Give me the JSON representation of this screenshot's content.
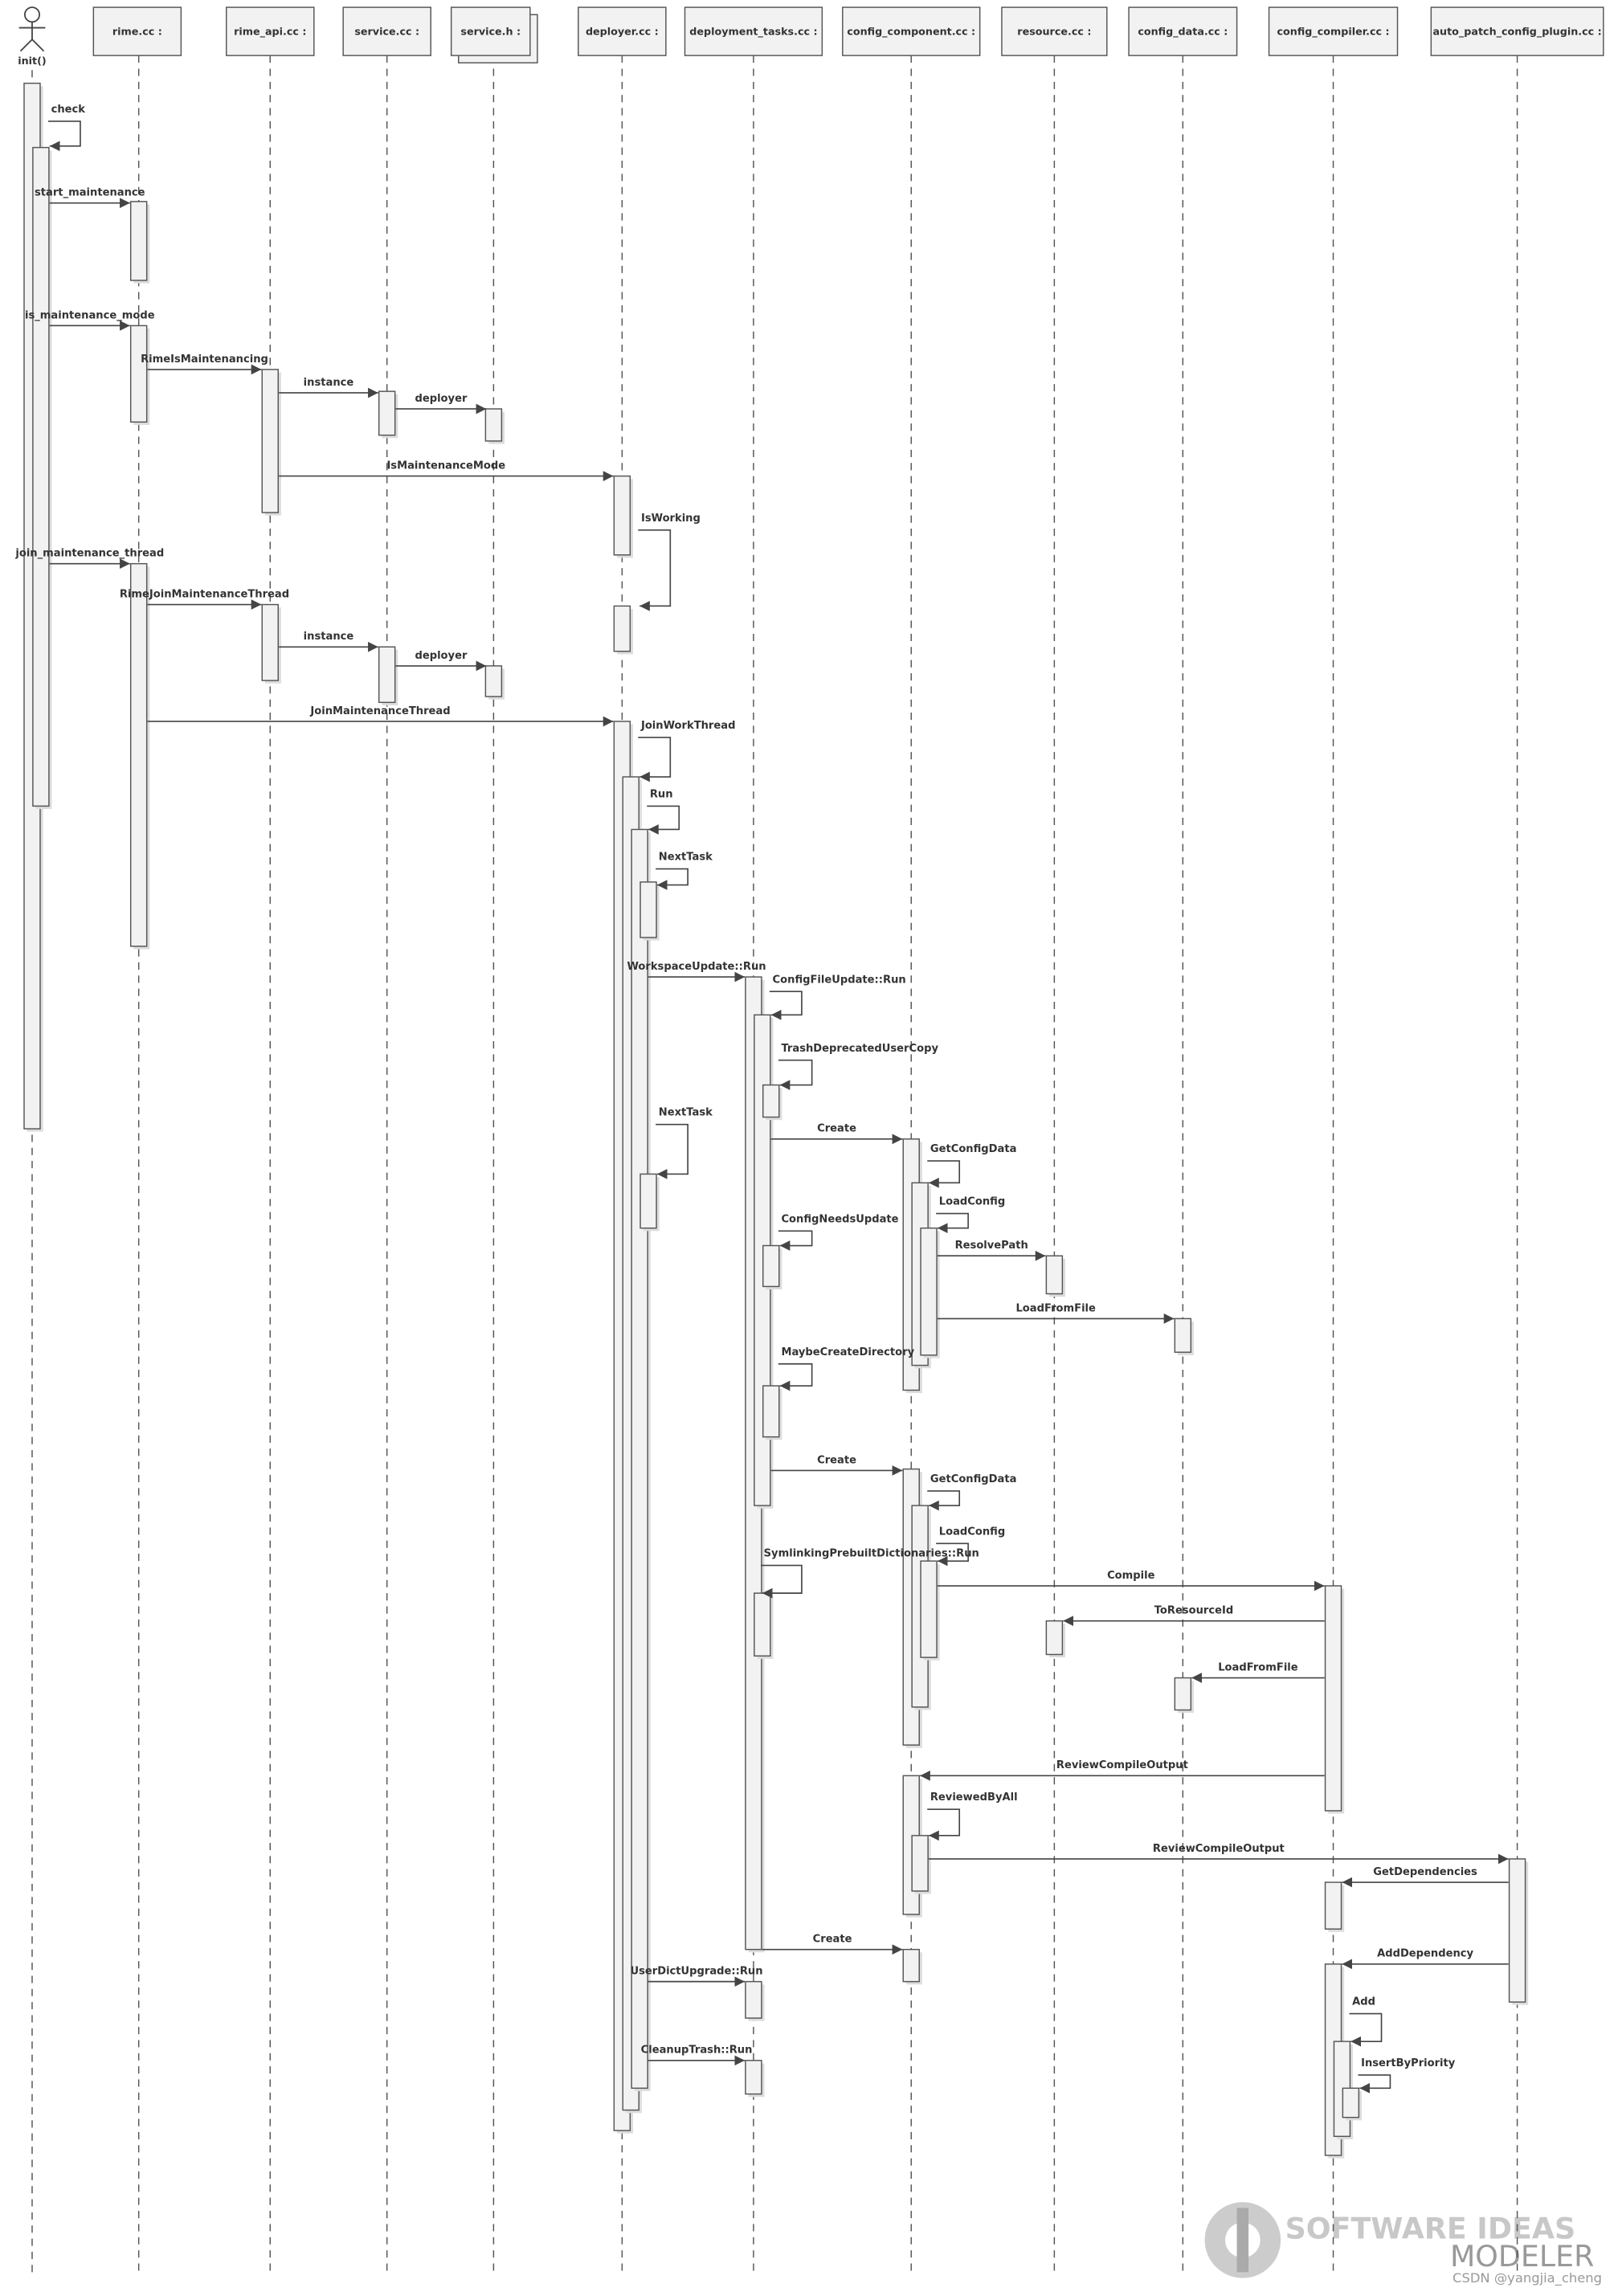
{
  "actor": {
    "label": "init()"
  },
  "lifelines": [
    {
      "label": "rime.cc :"
    },
    {
      "label": "rime_api.cc :"
    },
    {
      "label": "service.cc :"
    },
    {
      "label": "service.h :"
    },
    {
      "label": "deployer.cc :"
    },
    {
      "label": "deployment_tasks.cc :"
    },
    {
      "label": "config_component.cc :"
    },
    {
      "label": "resource.cc :"
    },
    {
      "label": "config_data.cc :"
    },
    {
      "label": "config_compiler.cc :"
    },
    {
      "label": "auto_patch_config_plugin.cc :"
    }
  ],
  "messages": [
    {
      "label": "check"
    },
    {
      "label": "start_maintenance"
    },
    {
      "label": "is_maintenance_mode"
    },
    {
      "label": "RimeIsMaintenancing"
    },
    {
      "label": "instance"
    },
    {
      "label": "deployer"
    },
    {
      "label": "IsMaintenanceMode"
    },
    {
      "label": "IsWorking"
    },
    {
      "label": "join_maintenance_thread"
    },
    {
      "label": "RimeJoinMaintenanceThread"
    },
    {
      "label": "instance"
    },
    {
      "label": "deployer"
    },
    {
      "label": "JoinMaintenanceThread"
    },
    {
      "label": "JoinWorkThread"
    },
    {
      "label": "Run"
    },
    {
      "label": "NextTask"
    },
    {
      "label": "WorkspaceUpdate::Run"
    },
    {
      "label": "ConfigFileUpdate::Run"
    },
    {
      "label": "TrashDeprecatedUserCopy"
    },
    {
      "label": "NextTask"
    },
    {
      "label": "Create"
    },
    {
      "label": "GetConfigData"
    },
    {
      "label": "LoadConfig"
    },
    {
      "label": "ConfigNeedsUpdate"
    },
    {
      "label": "ResolvePath"
    },
    {
      "label": "LoadFromFile"
    },
    {
      "label": "MaybeCreateDirectory"
    },
    {
      "label": "Create"
    },
    {
      "label": "GetConfigData"
    },
    {
      "label": "LoadConfig"
    },
    {
      "label": "SymlinkingPrebuiltDictionaries::Run"
    },
    {
      "label": "Compile"
    },
    {
      "label": "ToResourceId"
    },
    {
      "label": "LoadFromFile"
    },
    {
      "label": "ReviewCompileOutput"
    },
    {
      "label": "ReviewedByAll"
    },
    {
      "label": "ReviewCompileOutput"
    },
    {
      "label": "GetDependencies"
    },
    {
      "label": "Create"
    },
    {
      "label": "AddDependency"
    },
    {
      "label": "UserDictUpgrade::Run"
    },
    {
      "label": "Add"
    },
    {
      "label": "InsertByPriority"
    },
    {
      "label": "CleanupTrash::Run"
    }
  ],
  "watermark": {
    "line1": "SOFTWARE IDEAS",
    "line2": "MODELER",
    "credit": "CSDN @yangjia_cheng"
  }
}
